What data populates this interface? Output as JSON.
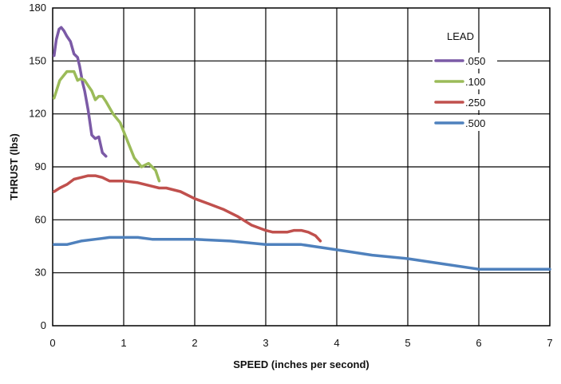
{
  "chart_data": {
    "type": "line",
    "title": "",
    "xlabel": "SPEED (inches per second)",
    "ylabel": "THRUST (lbs)",
    "xlim": [
      0,
      7
    ],
    "ylim": [
      0,
      180
    ],
    "xticks": [
      0,
      1,
      2,
      3,
      4,
      5,
      6,
      7
    ],
    "yticks": [
      0,
      30,
      60,
      90,
      120,
      150,
      180
    ],
    "grid": true,
    "legend": {
      "title": "LEAD",
      "placement": "top-right"
    },
    "series": [
      {
        "name": ".050",
        "color": "#7b5aa6",
        "x": [
          0.02,
          0.05,
          0.09,
          0.12,
          0.16,
          0.2,
          0.25,
          0.3,
          0.35,
          0.38,
          0.42,
          0.45,
          0.5,
          0.55,
          0.6,
          0.65,
          0.7,
          0.75
        ],
        "y": [
          153,
          162,
          168,
          169,
          167,
          164,
          161,
          154,
          152,
          147,
          138,
          133,
          122,
          108,
          106,
          107,
          98,
          96
        ]
      },
      {
        "name": ".100",
        "color": "#9bbb59",
        "x": [
          0.02,
          0.1,
          0.2,
          0.3,
          0.35,
          0.4,
          0.45,
          0.5,
          0.55,
          0.6,
          0.65,
          0.7,
          0.75,
          0.85,
          0.95,
          1.05,
          1.15,
          1.25,
          1.35,
          1.45,
          1.5
        ],
        "y": [
          129,
          139,
          144,
          144,
          139,
          140,
          139,
          136,
          133,
          128,
          130,
          130,
          127,
          120,
          115,
          105,
          95,
          90,
          92,
          88,
          82
        ]
      },
      {
        "name": ".250",
        "color": "#c0504d",
        "x": [
          0.02,
          0.1,
          0.2,
          0.3,
          0.4,
          0.5,
          0.6,
          0.7,
          0.8,
          1.0,
          1.2,
          1.4,
          1.5,
          1.6,
          1.8,
          2.0,
          2.2,
          2.4,
          2.6,
          2.8,
          3.0,
          3.1,
          3.2,
          3.3,
          3.4,
          3.5,
          3.6,
          3.7,
          3.77
        ],
        "y": [
          76,
          78,
          80,
          83,
          84,
          85,
          85,
          84,
          82,
          82,
          81,
          79,
          78,
          78,
          76,
          72,
          69,
          66,
          62,
          57,
          54,
          53,
          53,
          53,
          54,
          54,
          53,
          51,
          48
        ]
      },
      {
        "name": ".500",
        "color": "#4f81bd",
        "x": [
          0.02,
          0.2,
          0.4,
          0.6,
          0.8,
          1.0,
          1.2,
          1.4,
          1.6,
          2.0,
          2.5,
          3.0,
          3.5,
          4.0,
          4.5,
          5.0,
          5.5,
          6.0,
          6.5,
          7.0
        ],
        "y": [
          46,
          46,
          48,
          49,
          50,
          50,
          50,
          49,
          49,
          49,
          48,
          46,
          46,
          43,
          40,
          38,
          35,
          32,
          32,
          32
        ]
      }
    ]
  }
}
